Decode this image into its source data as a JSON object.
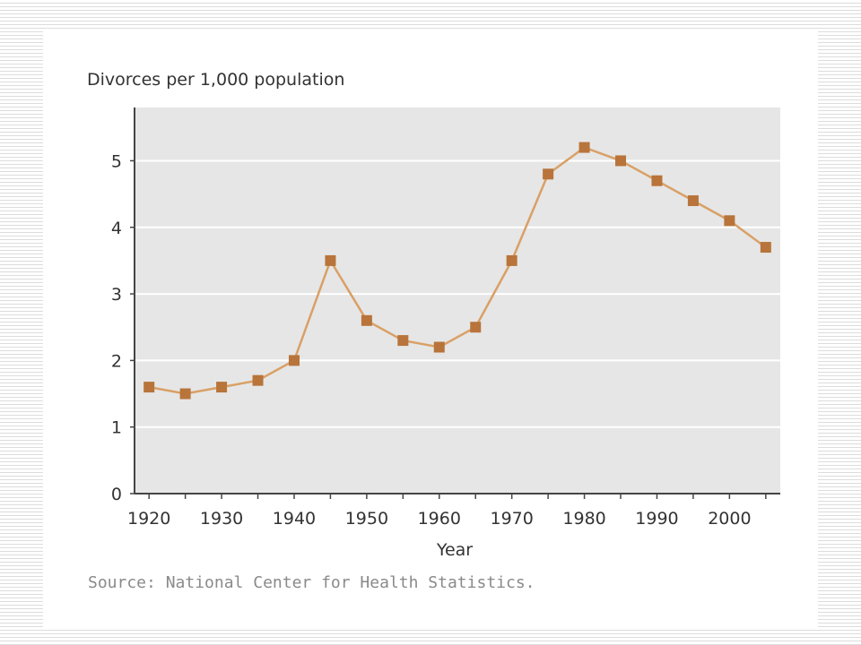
{
  "chart_data": {
    "type": "line",
    "ylabel": "Divorces per 1,000 population",
    "xlabel": "Year",
    "x": [
      1920,
      1925,
      1930,
      1935,
      1940,
      1945,
      1950,
      1955,
      1960,
      1965,
      1970,
      1975,
      1980,
      1985,
      1990,
      1995,
      2000,
      2005
    ],
    "series": [
      {
        "values": [
          1.6,
          1.5,
          1.6,
          1.7,
          2.0,
          3.5,
          2.6,
          2.3,
          2.2,
          2.5,
          3.5,
          4.8,
          5.2,
          5.0,
          4.7,
          4.4,
          4.1,
          3.7
        ]
      }
    ],
    "ylim": [
      0,
      5.8
    ],
    "xlim": [
      1918,
      2007
    ],
    "yticks": [
      "0",
      "1",
      "2",
      "3",
      "4",
      "5"
    ],
    "xticks": [
      "1920",
      "1930",
      "1940",
      "1950",
      "1960",
      "1970",
      "1980",
      "1990",
      "2000"
    ],
    "grid": true,
    "line_color": "#d9a066",
    "marker_color": "#b8743a",
    "plot_background": "#e6e6e6"
  },
  "source": "Source: National Center for Health Statistics."
}
